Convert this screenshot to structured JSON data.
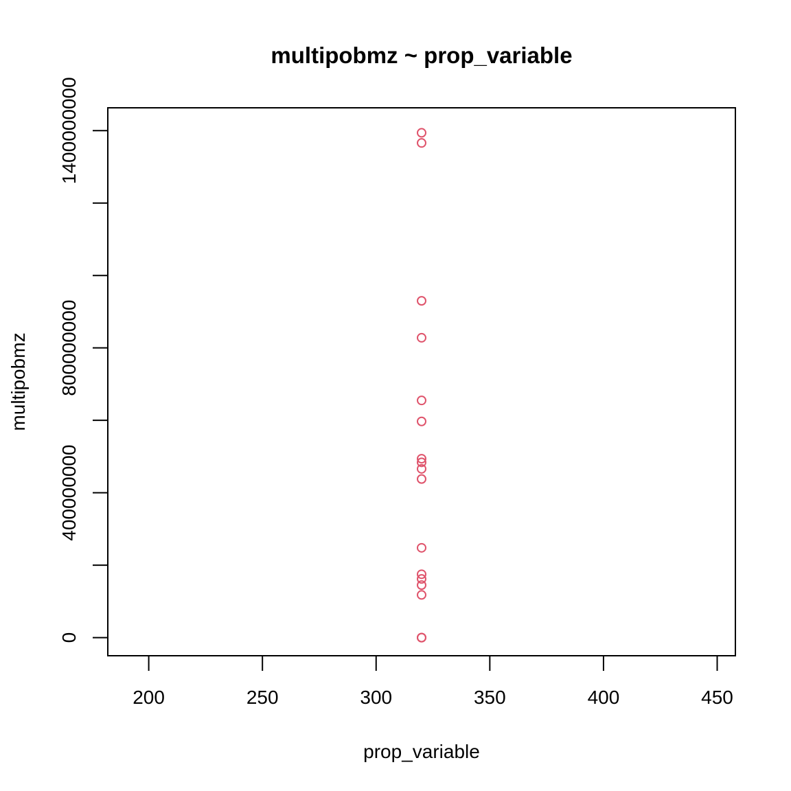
{
  "chart_data": {
    "type": "scatter",
    "title": "multipobmz ~ prop_variable",
    "xlabel": "prop_variable",
    "ylabel": "multipobmz",
    "xlim": [
      182,
      458
    ],
    "ylim": [
      -50000000,
      1463000000
    ],
    "x_ticks": [
      200,
      250,
      300,
      350,
      400,
      450
    ],
    "x_tick_labels": [
      "200",
      "250",
      "300",
      "350",
      "400",
      "450"
    ],
    "y_ticks": [
      0,
      200000000,
      400000000,
      600000000,
      800000000,
      1000000000,
      1200000000,
      1400000000
    ],
    "y_tick_labels": [
      "0",
      "",
      "400000000",
      "",
      "800000000",
      "",
      "",
      "1400000000"
    ],
    "grid": false,
    "point_color": "#DF536B",
    "axis_color": "#000000",
    "series": [
      {
        "x": [
          320,
          320,
          320,
          320,
          320,
          320,
          320,
          320,
          320,
          320,
          320,
          320,
          320,
          320,
          320,
          320,
          320
        ],
        "y": [
          1394000000,
          1366000000,
          930000000,
          828000000,
          655000000,
          597000000,
          494000000,
          484000000,
          466000000,
          438000000,
          248000000,
          175000000,
          162000000,
          145000000,
          118000000,
          0,
          0
        ]
      }
    ]
  }
}
